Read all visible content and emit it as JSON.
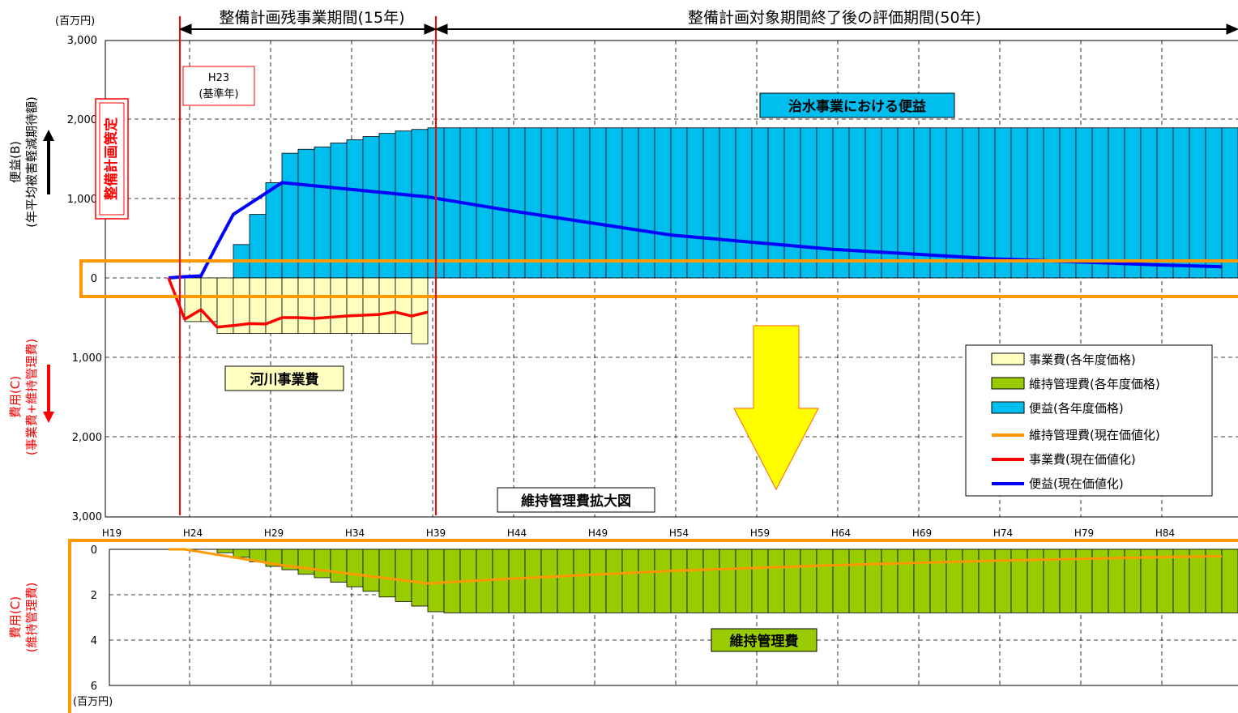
{
  "unit_top": "(百万円)",
  "unit_bottom": "(百万円)",
  "period1_label": "整備計画残事業期間(15年)",
  "period2_label": "整備計画対象期間終了後の評価期間(50年)",
  "base_year_line1": "H23",
  "base_year_line2": "(基準年)",
  "plan_label": "整備計画策定",
  "benefit_box": "治水事業における便益",
  "river_cost_box": "河川事業費",
  "enlarge_box": "維持管理費拡大図",
  "maintenance_box": "維持管理費",
  "ylabel_benefit_1": "便益(B)",
  "ylabel_benefit_2": "(年平均被害軽減期待額)",
  "ylabel_cost_1": "費用(C)",
  "ylabel_cost_2": "(事業費+維持管理費)",
  "ylabel_maint_1": "費用(C)",
  "ylabel_maint_2": "(維持管理費)",
  "colors": {
    "benefit": "#00bfef",
    "project_cost": "#ffffc0",
    "maintenance": "#99cc00",
    "maint_line": "#ff9900",
    "cost_line": "#ff0000",
    "benefit_line": "#0000ff",
    "red_marker": "#ff0000",
    "arrow": "#ffff00"
  },
  "chart_data": [
    {
      "type": "bar",
      "x_tick_labels": [
        "H19",
        "H24",
        "H29",
        "H34",
        "H39",
        "H44",
        "H49",
        "H54",
        "H59",
        "H64",
        "H69",
        "H74",
        "H79",
        "H84"
      ],
      "top_ticks_benefit": [
        "3,000",
        "2,000",
        "1,000",
        "0"
      ],
      "top_ticks_cost": [
        "1,000",
        "2,000",
        "3,000"
      ],
      "benefit_bars_start_year": "H24",
      "benefit_bars": [
        0,
        0,
        0,
        420,
        800,
        1200,
        1570,
        1620,
        1650,
        1700,
        1740,
        1780,
        1820,
        1850,
        1870,
        1890,
        1890,
        1890,
        1890,
        1890,
        1890,
        1890,
        1890,
        1890,
        1890,
        1890,
        1890,
        1890,
        1890,
        1890,
        1890,
        1890,
        1890,
        1890,
        1890,
        1890,
        1890,
        1890,
        1890,
        1890,
        1890,
        1890,
        1890,
        1890,
        1890,
        1890,
        1890,
        1890,
        1890,
        1890,
        1890,
        1890,
        1890,
        1890,
        1890,
        1890,
        1890,
        1890,
        1890,
        1890,
        1890,
        1890,
        1890,
        1890,
        1890
      ],
      "project_cost_bars": [
        550,
        550,
        700,
        700,
        700,
        700,
        700,
        700,
        700,
        700,
        700,
        700,
        700,
        700,
        830
      ],
      "benefit_pv_points": [
        [
          "H23",
          0
        ],
        [
          "H24",
          15
        ],
        [
          "H25",
          25
        ],
        [
          "H26",
          420
        ],
        [
          "H27",
          800
        ],
        [
          "H30",
          1200
        ],
        [
          "H39",
          1020
        ],
        [
          "H44",
          850
        ],
        [
          "H54",
          540
        ],
        [
          "H64",
          360
        ],
        [
          "H74",
          240
        ],
        [
          "H84",
          165
        ],
        [
          "H88",
          140
        ]
      ],
      "cost_pv_points": [
        [
          "H23",
          0
        ],
        [
          "H24",
          520
        ],
        [
          "H25",
          400
        ],
        [
          "H26",
          620
        ],
        [
          "H27",
          600
        ],
        [
          "H28",
          575
        ],
        [
          "H29",
          580
        ],
        [
          "H30",
          500
        ],
        [
          "H31",
          500
        ],
        [
          "H32",
          510
        ],
        [
          "H34",
          480
        ],
        [
          "H36",
          460
        ],
        [
          "H37",
          430
        ],
        [
          "H38",
          480
        ],
        [
          "H39",
          430
        ]
      ],
      "legend": [
        "事業費(各年度価格)",
        "維持管理費(各年度価格)",
        "便益(各年度価格)",
        "維持管理費(現在価値化)",
        "事業費(現在価値化)",
        "便益(現在価値化)"
      ],
      "legend_position": "right"
    },
    {
      "type": "bar",
      "title": "維持管理費拡大図",
      "y_ticks": [
        "0",
        "2",
        "4",
        "6"
      ],
      "maintenance_bars_start_year": "H24",
      "maintenance_bars": [
        0,
        0,
        0.15,
        0.35,
        0.55,
        0.75,
        0.9,
        1.1,
        1.25,
        1.45,
        1.65,
        1.85,
        2.1,
        2.3,
        2.5,
        2.75,
        2.8,
        2.8,
        2.8,
        2.8,
        2.8,
        2.8,
        2.8,
        2.8,
        2.8,
        2.8,
        2.8,
        2.8,
        2.8,
        2.8,
        2.8,
        2.8,
        2.8,
        2.8,
        2.8,
        2.8,
        2.8,
        2.8,
        2.8,
        2.8,
        2.8,
        2.8,
        2.8,
        2.8,
        2.8,
        2.8,
        2.8,
        2.8,
        2.8,
        2.8,
        2.8,
        2.8,
        2.8,
        2.8,
        2.8,
        2.8,
        2.8,
        2.8,
        2.8,
        2.8,
        2.8,
        2.8,
        2.8,
        2.8,
        2.8
      ],
      "maint_pv_points": [
        [
          "H23",
          0
        ],
        [
          "H24",
          0
        ],
        [
          "H30",
          0.7
        ],
        [
          "H39",
          1.5
        ],
        [
          "H44",
          1.3
        ],
        [
          "H54",
          0.95
        ],
        [
          "H64",
          0.7
        ],
        [
          "H74",
          0.5
        ],
        [
          "H84",
          0.35
        ],
        [
          "H88",
          0.3
        ]
      ]
    }
  ]
}
